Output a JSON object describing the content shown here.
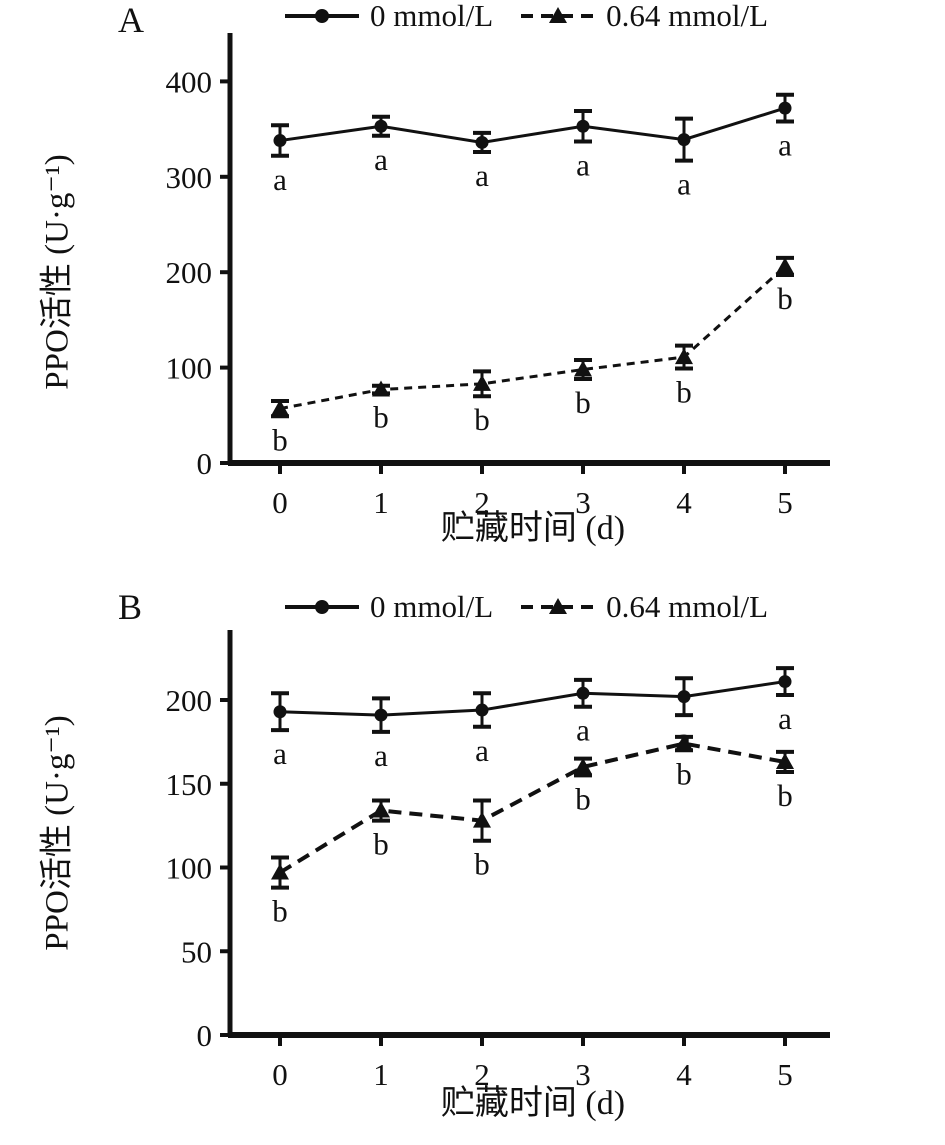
{
  "page": {
    "background": "#ffffff",
    "ink": "#111111"
  },
  "chart_data": [
    {
      "type": "line",
      "panel": "A",
      "title": "",
      "xlabel": "贮藏时间 (d)",
      "ylabel": "PPO活性 (U·g⁻¹)",
      "x": [
        0,
        1,
        2,
        3,
        4,
        5
      ],
      "xlim": [
        -0.5,
        5.5
      ],
      "ylim": [
        0,
        450
      ],
      "yticks": [
        0,
        100,
        200,
        300,
        400
      ],
      "grid": false,
      "legend_position": "top",
      "series": [
        {
          "name": "0 mmol/L",
          "marker": "circle",
          "line": "solid",
          "color": "#111111",
          "values": [
            338,
            353,
            336,
            353,
            339,
            372
          ],
          "errors": [
            16,
            10,
            10,
            16,
            22,
            14
          ],
          "point_labels": [
            "a",
            "a",
            "a",
            "a",
            "a",
            "a"
          ]
        },
        {
          "name": "0.64 mmol/L",
          "marker": "triangle",
          "line": "dashed",
          "color": "#111111",
          "values": [
            57,
            77,
            83,
            98,
            111,
            206
          ],
          "errors": [
            8,
            4,
            13,
            10,
            12,
            9
          ],
          "point_labels": [
            "b",
            "b",
            "b",
            "b",
            "b",
            "b"
          ]
        }
      ]
    },
    {
      "type": "line",
      "panel": "B",
      "title": "",
      "xlabel": "贮藏时间 (d)",
      "ylabel": "PPO活性 (U·g⁻¹)",
      "x": [
        0,
        1,
        2,
        3,
        4,
        5
      ],
      "xlim": [
        -0.5,
        5.5
      ],
      "ylim": [
        0,
        240
      ],
      "yticks": [
        0,
        50,
        100,
        150,
        200
      ],
      "grid": false,
      "legend_position": "top",
      "series": [
        {
          "name": "0 mmol/L",
          "marker": "circle",
          "line": "solid",
          "color": "#111111",
          "values": [
            193,
            191,
            194,
            204,
            202,
            211
          ],
          "errors": [
            11,
            10,
            10,
            8,
            11,
            8
          ],
          "point_labels": [
            "a",
            "a",
            "a",
            "a",
            "a",
            "a"
          ]
        },
        {
          "name": "0.64 mmol/L",
          "marker": "triangle",
          "line": "dashed",
          "color": "#111111",
          "values": [
            97,
            134,
            128,
            160,
            174,
            163
          ],
          "errors": [
            9,
            6,
            12,
            5,
            4,
            6
          ],
          "point_labels": [
            "b",
            "b",
            "b",
            "b",
            "b",
            "b"
          ]
        }
      ]
    }
  ]
}
